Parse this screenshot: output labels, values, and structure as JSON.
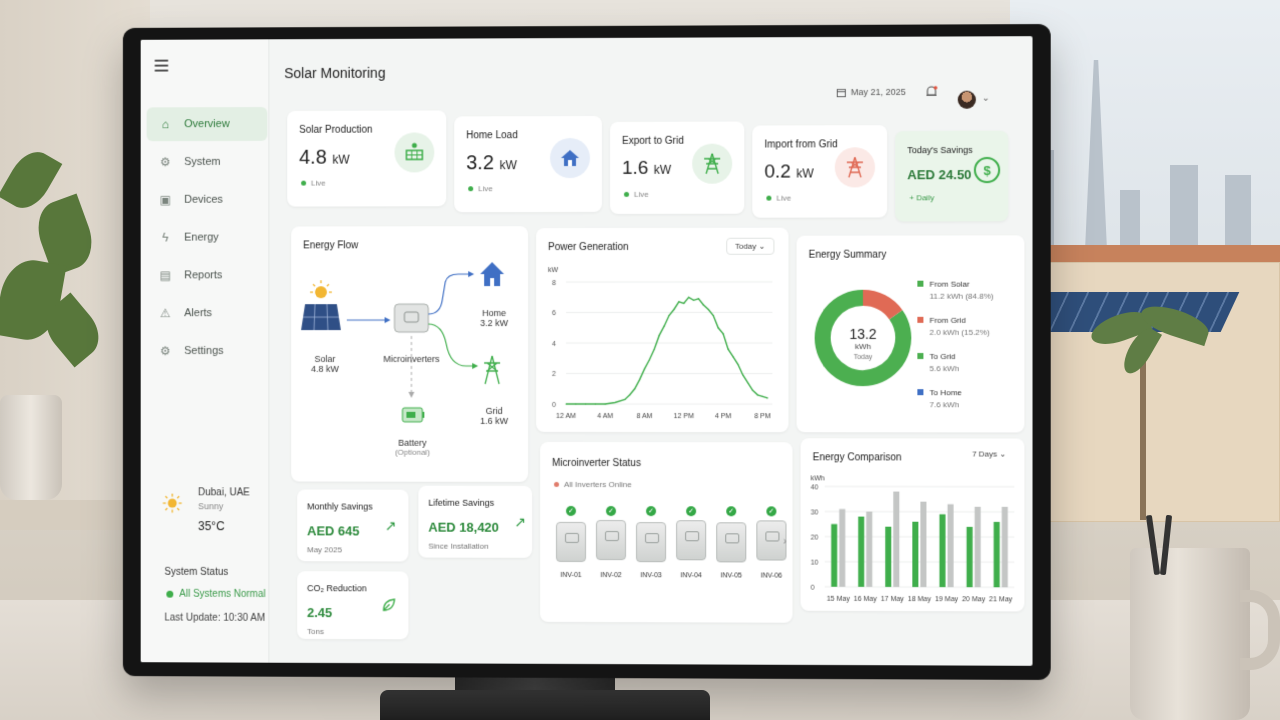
{
  "app": {
    "title": "Solar Monitoring"
  },
  "sidebar": {
    "items": [
      {
        "label": "Overview",
        "icon": "home-icon",
        "active": true
      },
      {
        "label": "System",
        "icon": "system-icon"
      },
      {
        "label": "Devices",
        "icon": "devices-icon"
      },
      {
        "label": "Energy",
        "icon": "bolt-icon"
      },
      {
        "label": "Reports",
        "icon": "reports-icon"
      },
      {
        "label": "Alerts",
        "icon": "alert-icon"
      },
      {
        "label": "Settings",
        "icon": "gear-icon"
      }
    ],
    "weather": {
      "city": "Dubai, UAE",
      "condition": "Sunny",
      "temp": "35°C"
    },
    "status": {
      "title": "System Status",
      "state": "All Systems Normal",
      "last_update": "Last Update: 10:30 AM"
    }
  },
  "header": {
    "date": "May 21, 2025"
  },
  "kpis": [
    {
      "label": "Solar Production",
      "value": "4.8",
      "unit": "kW",
      "sub": "Live",
      "icon": "solar-panel-icon"
    },
    {
      "label": "Home Load",
      "value": "3.2",
      "unit": "kW",
      "sub": "Live",
      "icon": "house-icon"
    },
    {
      "label": "Export to Grid",
      "value": "1.6",
      "unit": "kW",
      "sub": "Live",
      "icon": "pylon-icon"
    },
    {
      "label": "Import from Grid",
      "value": "0.2",
      "unit": "kW",
      "sub": "Live",
      "icon": "pylon-icon"
    },
    {
      "label": "Today's Savings",
      "value": "AED 24.50",
      "unit": "",
      "sub": "+ Daily",
      "icon": "dollar-icon"
    }
  ],
  "energy_flow": {
    "title": "Energy Flow",
    "solar": {
      "label": "Solar",
      "value": "4.8 kW"
    },
    "microinverters": {
      "label": "Microinverters"
    },
    "home": {
      "label": "Home",
      "value": "3.2 kW"
    },
    "grid": {
      "label": "Grid",
      "value": "1.6 kW"
    },
    "battery": {
      "label": "Battery",
      "sub": "(Optional)"
    }
  },
  "power_generation": {
    "title": "Power Generation",
    "range": "Today",
    "unit": "kW"
  },
  "energy_summary": {
    "title": "Energy Summary",
    "center_value": "13.2",
    "center_unit": "kWh",
    "center_sub": "Today",
    "legend": [
      {
        "label": "From Solar",
        "value": "11.2 kWh (84.8%)",
        "color": "#4caf50"
      },
      {
        "label": "From Grid",
        "value": "2.0 kWh (15.2%)",
        "color": "#e06a55"
      },
      {
        "label": "To Grid",
        "value": "5.6 kWh",
        "color": "#4caf50"
      },
      {
        "label": "To Home",
        "value": "7.6 kWh",
        "color": "#3f6fc4"
      }
    ]
  },
  "savings": {
    "monthly": {
      "label": "Monthly Savings",
      "value": "AED 645",
      "sub": "May 2025"
    },
    "lifetime": {
      "label": "Lifetime Savings",
      "value": "AED 18,420",
      "sub": "Since Installation"
    },
    "co2": {
      "label": "CO₂ Reduction",
      "value": "2.45",
      "sub": "Tons"
    }
  },
  "microinverters": {
    "title": "Microinverter Status",
    "status": "All Inverters Online",
    "units": [
      "INV-01",
      "INV-02",
      "INV-03",
      "INV-04",
      "INV-05",
      "INV-06"
    ]
  },
  "energy_comparison": {
    "title": "Energy Comparison",
    "range": "7 Days",
    "ylabel": "kWh"
  },
  "colors": {
    "accent": "#3fae4b",
    "accent_dark": "#2d7a3a",
    "grid_red": "#e06a55",
    "home_blue": "#3f6fc4"
  },
  "chart_data": [
    {
      "type": "line",
      "title": "Power Generation",
      "ylabel": "kW",
      "ylim": [
        0,
        8
      ],
      "yticks": [
        0,
        2,
        4,
        6,
        8
      ],
      "xticks": [
        "12 AM",
        "4 AM",
        "8 AM",
        "12 PM",
        "4 PM",
        "8 PM"
      ],
      "x": [
        0,
        1,
        2,
        3,
        4,
        5,
        6,
        6.5,
        7,
        7.5,
        8,
        8.5,
        9,
        9.5,
        10,
        10.5,
        11,
        11.5,
        12,
        12.5,
        13,
        13.5,
        14,
        14.5,
        15,
        15.5,
        16,
        16.5,
        17,
        17.5,
        18,
        18.5,
        19,
        19.5,
        20,
        20.5
      ],
      "series": [
        {
          "values": [
            0,
            0,
            0,
            0,
            0,
            0.1,
            0.3,
            0.6,
            1.0,
            1.6,
            2.3,
            2.9,
            3.6,
            4.5,
            5.1,
            5.8,
            6.2,
            6.7,
            6.6,
            7.0,
            6.8,
            6.9,
            6.5,
            6.2,
            5.8,
            5.0,
            4.6,
            3.6,
            3.1,
            2.6,
            1.9,
            1.4,
            0.9,
            0.6,
            0.5,
            0.4
          ]
        }
      ],
      "grid": true
    },
    {
      "type": "pie",
      "title": "Energy Summary",
      "categories": [
        "From Solar",
        "From Grid"
      ],
      "values": [
        84.8,
        15.2
      ]
    },
    {
      "type": "bar",
      "title": "Energy Comparison",
      "ylabel": "kWh",
      "ylim": [
        0,
        40
      ],
      "yticks": [
        0,
        10,
        20,
        30,
        40
      ],
      "categories": [
        "15 May",
        "16 May",
        "17 May",
        "18 May",
        "19 May",
        "20 May",
        "21 May"
      ],
      "series": [
        {
          "values": [
            25,
            28,
            24,
            26,
            29,
            24,
            26
          ]
        },
        {
          "values": [
            31,
            30,
            38,
            34,
            33,
            32,
            32
          ]
        }
      ],
      "grid": true
    }
  ]
}
